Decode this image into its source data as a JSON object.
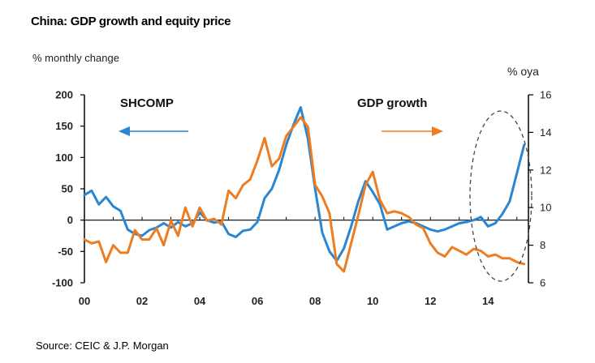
{
  "title": "China: GDP growth and equity price",
  "ylabel_left": "% monthly change",
  "ylabel_right": "% oya",
  "source": "Source: CEIC & J.P. Morgan",
  "colors": {
    "shcomp": "#2a86d1",
    "gdp": "#ee7d22",
    "axis": "#000000",
    "circle": "#444444"
  },
  "chart_data": {
    "type": "line",
    "title": "China: GDP growth and equity price",
    "xlabel": "",
    "ylabel": "% monthly change",
    "ylabel_right": "% oya",
    "xlim": [
      2000,
      2015.4
    ],
    "ylim": [
      -100,
      200
    ],
    "ylim_right": [
      6,
      16
    ],
    "x_ticks": [
      "00",
      "02",
      "04",
      "06",
      "08",
      "10",
      "12",
      "14"
    ],
    "y_ticks": [
      -100,
      -50,
      0,
      50,
      100,
      150,
      200
    ],
    "y_ticks_right": [
      6,
      8,
      10,
      12,
      14,
      16
    ],
    "grid": false,
    "legend": "inline labels with arrows",
    "series": [
      {
        "name": "SHCOMP",
        "axis": "left",
        "x": [
          2000,
          2000.25,
          2000.5,
          2000.75,
          2001,
          2001.25,
          2001.5,
          2001.75,
          2002,
          2002.25,
          2002.5,
          2002.75,
          2003,
          2003.25,
          2003.5,
          2003.75,
          2004,
          2004.25,
          2004.5,
          2004.75,
          2005,
          2005.25,
          2005.5,
          2005.75,
          2006,
          2006.25,
          2006.5,
          2006.75,
          2007,
          2007.25,
          2007.5,
          2007.75,
          2008,
          2008.25,
          2008.5,
          2008.75,
          2009,
          2009.25,
          2009.5,
          2009.75,
          2010,
          2010.25,
          2010.5,
          2010.75,
          2011,
          2011.25,
          2011.5,
          2011.75,
          2012,
          2012.25,
          2012.5,
          2012.75,
          2013,
          2013.25,
          2013.5,
          2013.75,
          2014,
          2014.25,
          2014.5,
          2014.75,
          2015,
          2015.25
        ],
        "values": [
          40,
          47,
          25,
          37,
          22,
          15,
          -15,
          -22,
          -25,
          -16,
          -12,
          -5,
          -12,
          -3,
          -10,
          -5,
          12,
          0,
          -4,
          -2,
          -22,
          -27,
          -17,
          -15,
          -3,
          35,
          50,
          80,
          120,
          152,
          180,
          130,
          50,
          -20,
          -50,
          -65,
          -45,
          -10,
          30,
          62,
          45,
          25,
          -15,
          -10,
          -5,
          -2,
          -5,
          -10,
          -15,
          -18,
          -15,
          -10,
          -5,
          -3,
          0,
          5,
          -10,
          -5,
          10,
          30,
          75,
          120
        ]
      },
      {
        "name": "GDP growth",
        "axis": "right",
        "x": [
          2000,
          2000.25,
          2000.5,
          2000.75,
          2001,
          2001.25,
          2001.5,
          2001.75,
          2002,
          2002.25,
          2002.5,
          2002.75,
          2003,
          2003.25,
          2003.5,
          2003.75,
          2004,
          2004.25,
          2004.5,
          2004.75,
          2005,
          2005.25,
          2005.5,
          2005.75,
          2006,
          2006.25,
          2006.5,
          2006.75,
          2007,
          2007.25,
          2007.5,
          2007.75,
          2008,
          2008.25,
          2008.5,
          2008.75,
          2009,
          2009.25,
          2009.5,
          2009.75,
          2010,
          2010.25,
          2010.5,
          2010.75,
          2011,
          2011.25,
          2011.5,
          2011.75,
          2012,
          2012.25,
          2012.5,
          2012.75,
          2013,
          2013.25,
          2013.5,
          2013.75,
          2014,
          2014.25,
          2014.5,
          2014.75,
          2015,
          2015.25
        ],
        "values": [
          8.3,
          8.1,
          8.2,
          7.1,
          8.0,
          7.6,
          7.6,
          8.8,
          8.3,
          8.3,
          8.9,
          8.0,
          9.3,
          8.5,
          10.0,
          9.0,
          10.0,
          9.3,
          9.4,
          9.1,
          10.9,
          10.5,
          11.2,
          11.5,
          12.5,
          13.7,
          12.2,
          12.6,
          13.8,
          14.3,
          14.8,
          14.3,
          11.2,
          10.6,
          9.7,
          7.0,
          6.6,
          8.1,
          9.6,
          11.2,
          11.9,
          10.4,
          9.7,
          9.8,
          9.7,
          9.5,
          9.1,
          8.9,
          8.1,
          7.6,
          7.4,
          7.9,
          7.7,
          7.5,
          7.8,
          7.7,
          7.4,
          7.5,
          7.3,
          7.3,
          7.1,
          7.0
        ]
      }
    ],
    "annotations": [
      "SHCOMP",
      "GDP growth"
    ]
  }
}
